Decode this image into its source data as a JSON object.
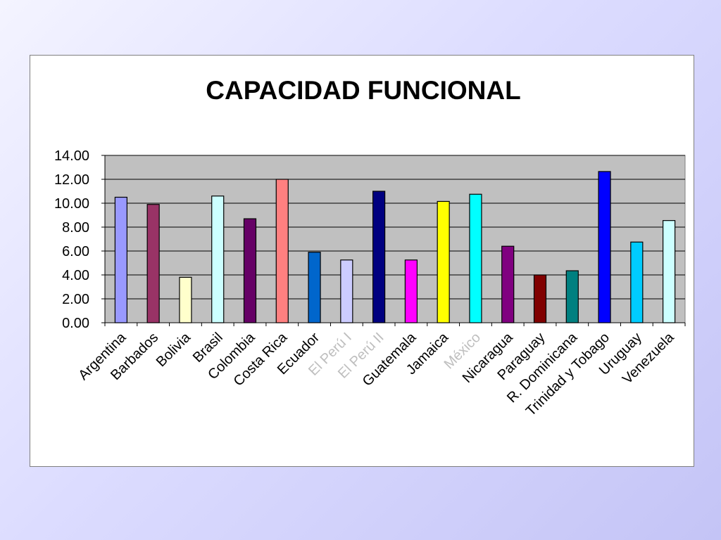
{
  "chart_data": {
    "type": "bar",
    "title": "CAPACIDAD FUNCIONAL",
    "xlabel": "",
    "ylabel": "",
    "ylim": [
      0,
      14
    ],
    "yticks": [
      "0.00",
      "2.00",
      "4.00",
      "6.00",
      "8.00",
      "10.00",
      "12.00",
      "14.00"
    ],
    "grid": true,
    "legend": "none",
    "plot_background": "#c0c0c0",
    "categories": [
      "Argentina",
      "Barbados",
      "Bolivia",
      "Brasil",
      "Colombia",
      "Costa Rica",
      "Ecuador",
      "El Perú I",
      "El Perú II",
      "Guatemala",
      "Jamaica",
      "México",
      "Nicaragua",
      "Paraguay",
      "R. Dominicana",
      "Trinidad y Tobago",
      "Uruguay",
      "Venezuela"
    ],
    "faded_categories": [
      "El Perú I",
      "El Perú II",
      "México"
    ],
    "values": [
      10.5,
      9.9,
      3.8,
      10.6,
      8.7,
      12.0,
      5.9,
      5.25,
      11.0,
      5.25,
      10.15,
      10.75,
      6.4,
      4.0,
      4.35,
      12.65,
      6.75,
      8.55
    ],
    "colors": [
      "#9999ff",
      "#993366",
      "#ffffcc",
      "#ccffff",
      "#660066",
      "#ff8080",
      "#0066cc",
      "#ccccff",
      "#000080",
      "#ff00ff",
      "#ffff00",
      "#00ffff",
      "#800080",
      "#800000",
      "#008080",
      "#0000ff",
      "#00ccff",
      "#ccffff"
    ]
  }
}
